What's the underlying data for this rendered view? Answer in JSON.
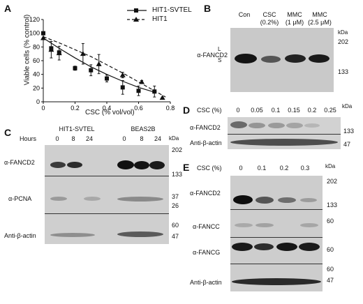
{
  "panel_a": {
    "label": "A",
    "ylabel": "Viable cells (% control)",
    "xlabel": "CSC (% vol/vol)",
    "legend": [
      "HIT1-SVTEL",
      "HIT1"
    ],
    "chart_data": {
      "type": "scatter",
      "xlim": [
        0,
        0.8
      ],
      "ylim": [
        0,
        120
      ],
      "xticks": [
        "0",
        "0.2",
        "0.4",
        "0.6",
        "0.8"
      ],
      "yticks": [
        "0",
        "20",
        "40",
        "60",
        "80",
        "100",
        "120"
      ],
      "series": [
        {
          "name": "HIT1-SVTEL",
          "marker": "square",
          "line": "solid",
          "x": [
            0,
            0.05,
            0.1,
            0.2,
            0.3,
            0.4,
            0.5,
            0.6,
            0.7
          ],
          "y": [
            100,
            78,
            72,
            49,
            46,
            34,
            21,
            16,
            15
          ],
          "err": [
            0,
            0,
            0,
            3,
            8,
            5,
            10,
            7,
            8
          ]
        },
        {
          "name": "HIT1",
          "marker": "triangle",
          "line": "dashed",
          "x": [
            0,
            0.05,
            0.1,
            0.25,
            0.35,
            0.5,
            0.62,
            0.75
          ],
          "y": [
            93,
            76,
            71,
            70,
            55,
            39,
            29,
            6
          ],
          "err": [
            0,
            12,
            10,
            15,
            14,
            4,
            2,
            0
          ]
        }
      ],
      "fit_lines": [
        {
          "style": "solid",
          "x": [
            0,
            0.1,
            0.2,
            0.3,
            0.4,
            0.5,
            0.6,
            0.7
          ],
          "y": [
            93,
            78,
            64,
            51,
            40,
            30,
            21,
            14
          ]
        },
        {
          "style": "dashed",
          "x": [
            0,
            0.1,
            0.2,
            0.3,
            0.4,
            0.5,
            0.6,
            0.7,
            0.77
          ],
          "y": [
            95,
            86,
            76,
            66,
            54,
            42,
            29,
            16,
            7
          ]
        }
      ]
    }
  },
  "panel_b": {
    "label": "B",
    "lanes": [
      "Con",
      "CSC",
      "MMC",
      "MMC"
    ],
    "lane_sub": [
      "",
      "(0.2%)",
      "(1 μM)",
      "(2.5 μM)"
    ],
    "antibody": "α-FANCD2",
    "L": "L",
    "S": "S",
    "kda": "kDa",
    "markers": [
      "202",
      "133"
    ]
  },
  "panel_c": {
    "label": "C",
    "groups": [
      "HIT1-SVTEL",
      "BEAS2B"
    ],
    "hours_label": "Hours",
    "hours": [
      "0",
      "8",
      "24",
      "0",
      "8",
      "24"
    ],
    "kda": "kDa",
    "rows": [
      "α-FANCD2",
      "α-PCNA",
      "Anti-β-actin"
    ],
    "markers": [
      "202",
      "133",
      "37",
      "26",
      "60",
      "47"
    ]
  },
  "panel_d": {
    "label": "D",
    "csc_label": "CSC (%)",
    "doses": [
      "0",
      "0.05",
      "0.1",
      "0.15",
      "0.2",
      "0.25"
    ],
    "kda": "kDa",
    "rows": [
      "α-FANCD2",
      "Anti-β-actin"
    ],
    "markers": [
      "133",
      "47"
    ]
  },
  "panel_e": {
    "label": "E",
    "csc_label": "CSC (%)",
    "doses": [
      "0",
      "0.1",
      "0.2",
      "0.3"
    ],
    "kda": "kDa",
    "rows": [
      "α-FANCD2",
      "α-FANCC",
      "α-FANCG",
      "Anti-β-actin"
    ],
    "markers": [
      "202",
      "133",
      "60",
      "60",
      "60",
      "47"
    ]
  }
}
